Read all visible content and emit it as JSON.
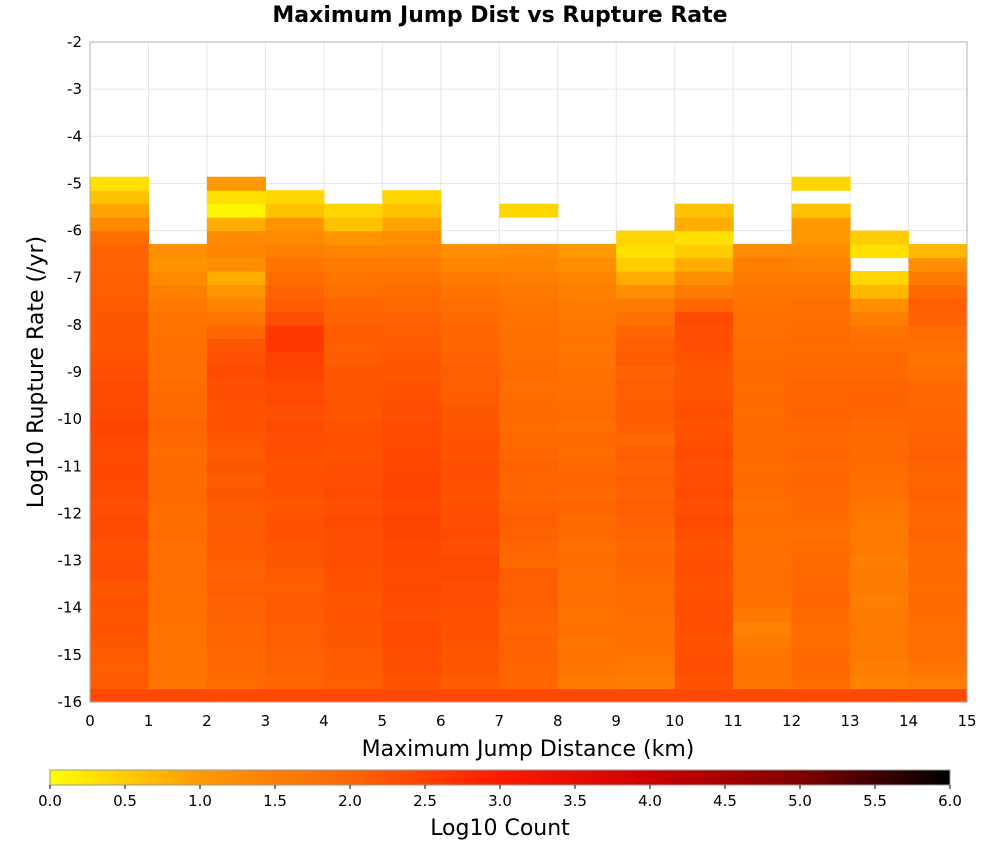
{
  "chart_data": {
    "type": "heatmap",
    "title": "Maximum Jump Dist vs Rupture Rate",
    "xlabel": "Maximum Jump Distance (km)",
    "ylabel": "Log10 Rupture Rate (/yr)",
    "xlim": [
      0,
      15
    ],
    "ylim": [
      -16,
      -2
    ],
    "x_ticks": [
      "0",
      "1",
      "2",
      "3",
      "4",
      "5",
      "6",
      "7",
      "8",
      "9",
      "10",
      "11",
      "12",
      "13",
      "14",
      "15"
    ],
    "y_ticks": [
      "-2",
      "-3",
      "-4",
      "-5",
      "-6",
      "-7",
      "-8",
      "-9",
      "-10",
      "-11",
      "-12",
      "-13",
      "-14",
      "-15",
      "-16"
    ],
    "x_bin_width": 1,
    "y_bin_height": 0.2857,
    "y_bin_start": -16,
    "colorbar": {
      "label": "Log10 Count",
      "range": [
        0,
        6
      ],
      "ticks": [
        "0.0",
        "0.5",
        "1.0",
        "1.5",
        "2.0",
        "2.5",
        "3.0",
        "3.5",
        "4.0",
        "4.5",
        "5.0",
        "5.5",
        "6.0"
      ],
      "stops": [
        "#ffff00",
        "#ff9900",
        "#ff6600",
        "#ff1a00",
        "#cc0000",
        "#800000",
        "#000000"
      ]
    },
    "columns": [
      {
        "x": 0,
        "values": [
          2.4,
          2.15,
          2.1,
          2.15,
          2.2,
          2.25,
          2.2,
          2.25,
          2.2,
          2.3,
          2.3,
          2.25,
          2.35,
          2.35,
          2.3,
          2.35,
          2.4,
          2.4,
          2.35,
          2.4,
          2.45,
          2.4,
          2.35,
          2.35,
          2.3,
          2.25,
          2.2,
          2.2,
          2.2,
          2.15,
          2.1,
          2.1,
          2.05,
          2.05,
          1.85,
          1.3,
          0.9,
          0.6,
          0.3
        ]
      },
      {
        "x": 1,
        "values": [
          2.4,
          1.7,
          1.75,
          1.7,
          1.75,
          1.75,
          1.8,
          1.8,
          1.85,
          1.85,
          1.8,
          1.85,
          1.9,
          1.85,
          1.9,
          1.95,
          1.9,
          1.95,
          1.9,
          1.95,
          2.0,
          1.95,
          1.9,
          1.9,
          1.85,
          1.85,
          1.8,
          1.75,
          1.7,
          1.65,
          1.5,
          1.3,
          1.1,
          1.2
        ]
      },
      {
        "x": 2,
        "values": [
          2.4,
          1.9,
          1.95,
          1.95,
          2.0,
          2.0,
          2.05,
          2.05,
          2.1,
          2.05,
          2.1,
          2.15,
          2.15,
          2.1,
          2.15,
          2.2,
          2.15,
          2.2,
          2.15,
          2.2,
          2.25,
          2.25,
          2.3,
          2.3,
          2.35,
          2.3,
          2.2,
          2.0,
          1.7,
          1.4,
          1.1,
          0.8,
          1.2,
          1.4,
          1.3,
          0.8,
          0.1,
          0.3,
          1.0
        ]
      },
      {
        "x": 3,
        "values": [
          2.4,
          2.0,
          2.05,
          2.05,
          2.1,
          2.1,
          2.15,
          2.15,
          2.1,
          2.15,
          2.2,
          2.2,
          2.25,
          2.25,
          2.2,
          2.25,
          2.3,
          2.25,
          2.3,
          2.3,
          2.35,
          2.3,
          2.4,
          2.35,
          2.45,
          2.5,
          2.6,
          2.6,
          2.3,
          2.15,
          2.05,
          1.9,
          1.7,
          1.5,
          1.3,
          1.1,
          0.6,
          0.4
        ]
      },
      {
        "x": 4,
        "values": [
          2.4,
          2.1,
          2.15,
          2.15,
          2.2,
          2.2,
          2.25,
          2.2,
          2.25,
          2.25,
          2.3,
          2.3,
          2.3,
          2.35,
          2.3,
          2.35,
          2.3,
          2.3,
          2.25,
          2.3,
          2.25,
          2.2,
          2.25,
          2.2,
          2.2,
          2.15,
          2.1,
          2.15,
          2.05,
          2.0,
          1.85,
          1.7,
          1.6,
          1.4,
          1.1,
          0.6,
          0.4
        ]
      },
      {
        "x": 5,
        "values": [
          2.4,
          2.25,
          2.3,
          2.3,
          2.35,
          2.35,
          2.3,
          2.35,
          2.4,
          2.35,
          2.4,
          2.4,
          2.45,
          2.45,
          2.4,
          2.45,
          2.45,
          2.4,
          2.4,
          2.35,
          2.35,
          2.3,
          2.3,
          2.25,
          2.2,
          2.2,
          2.15,
          2.1,
          2.05,
          1.95,
          1.9,
          1.75,
          1.6,
          1.4,
          1.2,
          0.9,
          0.6,
          0.4
        ]
      },
      {
        "x": 6,
        "values": [
          2.4,
          2.15,
          2.2,
          2.2,
          2.25,
          2.25,
          2.25,
          2.3,
          2.3,
          2.35,
          2.35,
          2.3,
          2.35,
          2.3,
          2.3,
          2.25,
          2.3,
          2.3,
          2.25,
          2.25,
          2.2,
          2.2,
          2.15,
          2.1,
          2.1,
          2.05,
          2.0,
          2.0,
          1.9,
          1.85,
          1.75,
          1.6,
          1.4,
          1.2
        ]
      },
      {
        "x": 7,
        "values": [
          2.4,
          2.0,
          2.0,
          2.05,
          2.05,
          2.0,
          2.05,
          2.1,
          2.1,
          2.1,
          1.95,
          2.0,
          2.05,
          2.1,
          2.05,
          2.0,
          2.0,
          2.05,
          2.0,
          1.95,
          1.9,
          1.95,
          1.9,
          1.85,
          1.9,
          1.85,
          1.8,
          1.8,
          1.75,
          1.7,
          1.65,
          1.55,
          1.4,
          1.3,
          null,
          null,
          0.4
        ]
      },
      {
        "x": 8,
        "values": [
          2.4,
          1.65,
          1.7,
          1.75,
          1.7,
          1.8,
          1.75,
          1.85,
          1.8,
          1.8,
          1.9,
          1.85,
          1.95,
          1.9,
          2.0,
          1.95,
          2.0,
          1.95,
          1.9,
          1.95,
          1.85,
          1.9,
          1.85,
          1.8,
          1.8,
          1.75,
          1.7,
          1.7,
          1.65,
          1.6,
          1.5,
          1.4,
          1.2,
          1.0
        ]
      },
      {
        "x": 9,
        "values": [
          2.4,
          1.55,
          1.65,
          1.7,
          1.8,
          1.8,
          1.85,
          1.9,
          1.9,
          1.95,
          2.0,
          1.95,
          2.0,
          2.05,
          2.1,
          2.05,
          2.1,
          2.05,
          2.1,
          2.0,
          2.1,
          2.15,
          2.1,
          2.1,
          2.05,
          2.15,
          2.1,
          2.0,
          1.8,
          1.6,
          1.2,
          0.8,
          0.5,
          0.3,
          0.4
        ]
      },
      {
        "x": 10,
        "values": [
          2.4,
          2.25,
          2.3,
          2.3,
          2.25,
          2.3,
          2.3,
          2.3,
          2.25,
          2.3,
          2.3,
          2.25,
          2.3,
          2.35,
          2.3,
          2.35,
          2.3,
          2.3,
          2.35,
          2.3,
          2.25,
          2.3,
          2.25,
          2.2,
          2.2,
          2.25,
          2.3,
          2.3,
          2.35,
          2.0,
          1.6,
          1.2,
          0.8,
          0.5,
          0.3,
          0.8,
          0.6
        ]
      },
      {
        "x": 11,
        "values": [
          2.4,
          1.7,
          1.75,
          1.7,
          1.6,
          1.45,
          1.65,
          1.8,
          1.85,
          1.85,
          1.8,
          1.85,
          1.8,
          1.9,
          1.85,
          1.9,
          1.95,
          1.9,
          1.95,
          1.9,
          1.95,
          1.9,
          1.95,
          1.9,
          1.95,
          1.9,
          1.9,
          1.85,
          1.8,
          1.75,
          1.7,
          1.6,
          1.5,
          1.3
        ]
      },
      {
        "x": 12,
        "values": [
          2.4,
          1.9,
          1.95,
          1.95,
          1.9,
          1.9,
          1.95,
          2.0,
          1.95,
          1.95,
          1.9,
          1.9,
          1.85,
          1.9,
          1.95,
          1.95,
          2.0,
          1.95,
          2.0,
          1.95,
          2.0,
          2.05,
          2.0,
          2.0,
          1.95,
          1.95,
          1.9,
          1.9,
          1.85,
          1.8,
          1.7,
          1.6,
          1.45,
          1.25,
          1.0,
          1.0,
          0.6,
          null,
          0.4
        ]
      },
      {
        "x": 13,
        "values": [
          2.4,
          1.45,
          1.55,
          1.65,
          1.6,
          1.65,
          1.6,
          1.55,
          1.6,
          1.6,
          1.55,
          1.65,
          1.6,
          1.65,
          1.7,
          1.8,
          1.85,
          1.9,
          1.95,
          1.9,
          1.95,
          2.0,
          2.05,
          2.0,
          1.95,
          1.95,
          1.85,
          1.75,
          1.55,
          1.2,
          0.7,
          0.4,
          null,
          0.3,
          0.5
        ]
      },
      {
        "x": 14,
        "values": [
          2.4,
          1.55,
          1.7,
          1.8,
          1.85,
          1.85,
          1.9,
          1.95,
          1.9,
          1.95,
          1.9,
          1.95,
          2.0,
          1.95,
          2.0,
          2.05,
          2.0,
          2.05,
          2.1,
          2.05,
          2.0,
          2.0,
          1.95,
          1.95,
          1.85,
          1.75,
          1.8,
          1.9,
          2.05,
          2.1,
          1.95,
          1.6,
          1.2,
          0.7
        ]
      }
    ]
  }
}
